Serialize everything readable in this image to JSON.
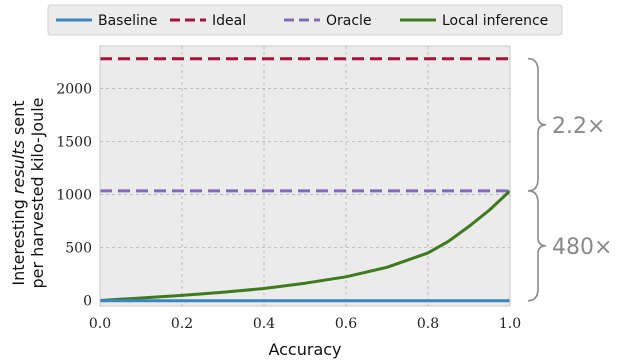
{
  "chart_data": {
    "type": "line",
    "xlabel": "Accuracy",
    "ylabel_line1_before": "Interesting ",
    "ylabel_line1_italic": "results",
    "ylabel_line1_after": " sent",
    "ylabel_line2": "per harvested kilo-Joule",
    "xlim": [
      0.0,
      1.0
    ],
    "ylim": [
      -50,
      2400
    ],
    "x_ticks": [
      0.0,
      0.2,
      0.4,
      0.6,
      0.8,
      1.0
    ],
    "x_tick_labels": [
      "0.0",
      "0.2",
      "0.4",
      "0.6",
      "0.8",
      "1.0"
    ],
    "y_ticks": [
      0,
      500,
      1000,
      1500,
      2000
    ],
    "y_tick_labels": [
      "0",
      "500",
      "1000",
      "1500",
      "2000"
    ],
    "grid": true,
    "legend_position": "top",
    "series": [
      {
        "name": "Baseline",
        "color": "#3a86c4",
        "dash": "solid",
        "x": [
          0.0,
          1.0
        ],
        "y": [
          0,
          0
        ]
      },
      {
        "name": "Ideal",
        "color": "#a8123a",
        "dash": "dashed",
        "x": [
          0.0,
          1.0
        ],
        "y": [
          2280,
          2280
        ]
      },
      {
        "name": "Oracle",
        "color": "#7e6db5",
        "dash": "dashed",
        "x": [
          0.0,
          1.0
        ],
        "y": [
          1035,
          1035
        ]
      },
      {
        "name": "Local inference",
        "color": "#3f7a1e",
        "dash": "solid",
        "x": [
          0.0,
          0.1,
          0.2,
          0.3,
          0.4,
          0.5,
          0.6,
          0.7,
          0.8,
          0.85,
          0.9,
          0.95,
          1.0
        ],
        "y": [
          2,
          25,
          50,
          80,
          115,
          165,
          225,
          315,
          450,
          560,
          700,
          855,
          1035
        ]
      }
    ],
    "annotations": [
      {
        "text": "2.2×",
        "y_from": 1035,
        "y_to": 2280
      },
      {
        "text": "480×",
        "y_from": 0,
        "y_to": 1035
      }
    ]
  },
  "colors": {
    "plot_background": "#ebebeb",
    "grid": "#b5b5b5",
    "annotation": "#8a8a8a"
  }
}
